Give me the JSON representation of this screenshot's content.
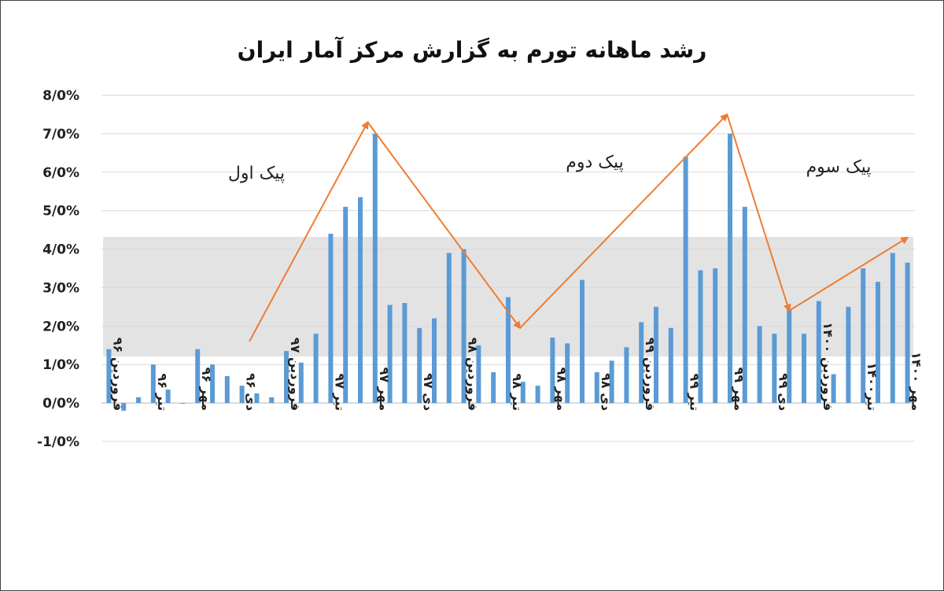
{
  "chart_data": {
    "type": "bar",
    "title": "رشد ماهانه تورم به گزارش مرکز آمار ایران",
    "ylim": [
      -1.0,
      8.0
    ],
    "y_ticks": [
      "-1/0%",
      "0/0%",
      "1/0%",
      "2/0%",
      "3/0%",
      "4/0%",
      "5/0%",
      "6/0%",
      "7/0%",
      "8/0%"
    ],
    "grid": true,
    "bar_color": "#5b9bd5",
    "arrow_color": "#ed7d31",
    "x_tick_labels": [
      {
        "index": 0,
        "text": "فروردین ۹۶"
      },
      {
        "index": 3,
        "text": "تیر ۹۶"
      },
      {
        "index": 6,
        "text": "مهر ۹۶"
      },
      {
        "index": 9,
        "text": "دی ۹۶"
      },
      {
        "index": 12,
        "text": "فروردین ۹۷"
      },
      {
        "index": 15,
        "text": "تیر ۹۷"
      },
      {
        "index": 18,
        "text": "مهر ۹۷"
      },
      {
        "index": 21,
        "text": "دی ۹۷"
      },
      {
        "index": 24,
        "text": "فروردین ۹۸"
      },
      {
        "index": 27,
        "text": "تیر ۹۸"
      },
      {
        "index": 30,
        "text": "مهر ۹۸"
      },
      {
        "index": 33,
        "text": "دی ۹۸"
      },
      {
        "index": 36,
        "text": "فروردین ۹۹"
      },
      {
        "index": 39,
        "text": "تیر ۹۹"
      },
      {
        "index": 42,
        "text": "مهر ۹۹"
      },
      {
        "index": 45,
        "text": "دی ۹۹"
      },
      {
        "index": 48,
        "text": "فروردین ۱۴۰۰"
      },
      {
        "index": 51,
        "text": "تیر۱۴۰۰"
      },
      {
        "index": 54,
        "text": "مهر ۱۴۰۰"
      }
    ],
    "values": [
      1.4,
      -0.2,
      0.15,
      1.0,
      0.35,
      0.0,
      1.4,
      1.0,
      0.7,
      0.45,
      0.25,
      0.15,
      1.35,
      1.05,
      1.8,
      4.4,
      5.1,
      5.35,
      7.0,
      2.55,
      2.6,
      1.95,
      2.2,
      3.9,
      4.0,
      1.5,
      0.8,
      2.75,
      0.55,
      0.45,
      1.7,
      1.55,
      3.2,
      0.8,
      1.1,
      1.45,
      2.1,
      2.5,
      1.95,
      6.4,
      3.45,
      3.5,
      7.0,
      5.1,
      2.0,
      1.8,
      2.45,
      1.8,
      2.65,
      0.75,
      2.5,
      3.5,
      3.15,
      3.9,
      3.65
    ],
    "annotations": {
      "peak1": "پیک اول",
      "peak2": "پیک دوم",
      "peak3": "پیک سوم"
    },
    "arrows": [
      {
        "from": [
          9.5,
          1.6
        ],
        "to": [
          17.5,
          7.3
        ]
      },
      {
        "from": [
          17.5,
          7.3
        ],
        "to": [
          27.8,
          1.95
        ]
      },
      {
        "from": [
          27.8,
          1.95
        ],
        "to": [
          41.8,
          7.5
        ]
      },
      {
        "from": [
          41.8,
          7.5
        ],
        "to": [
          46.0,
          2.4
        ]
      },
      {
        "from": [
          46.0,
          2.4
        ],
        "to": [
          54.0,
          4.3
        ]
      }
    ]
  }
}
